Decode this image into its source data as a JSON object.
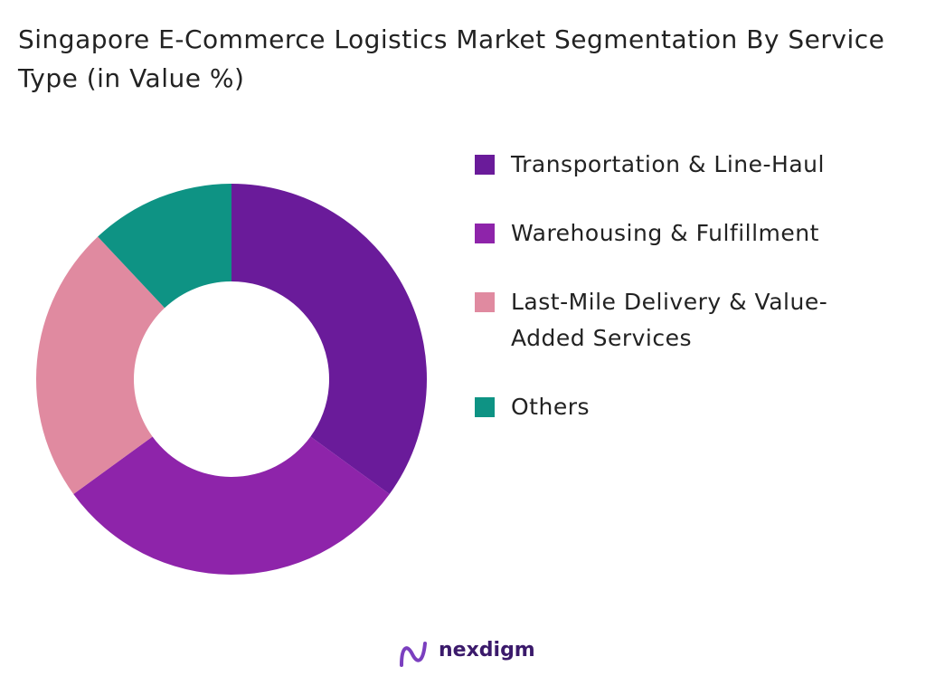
{
  "chart_data": {
    "type": "donut",
    "title": "Singapore E-Commerce Logistics Market Segmentation By Service Type (in Value %)",
    "categories": [
      "Transportation & Line-Haul",
      "Warehousing & Fulfillment",
      "Last-Mile Delivery & Value-Added Services",
      "Others"
    ],
    "values": [
      35,
      30,
      23,
      12
    ],
    "colors": [
      "#6a1b9a",
      "#8e24aa",
      "#e08aa0",
      "#0e9384"
    ],
    "legend": "right"
  },
  "brand": "nexdigm"
}
